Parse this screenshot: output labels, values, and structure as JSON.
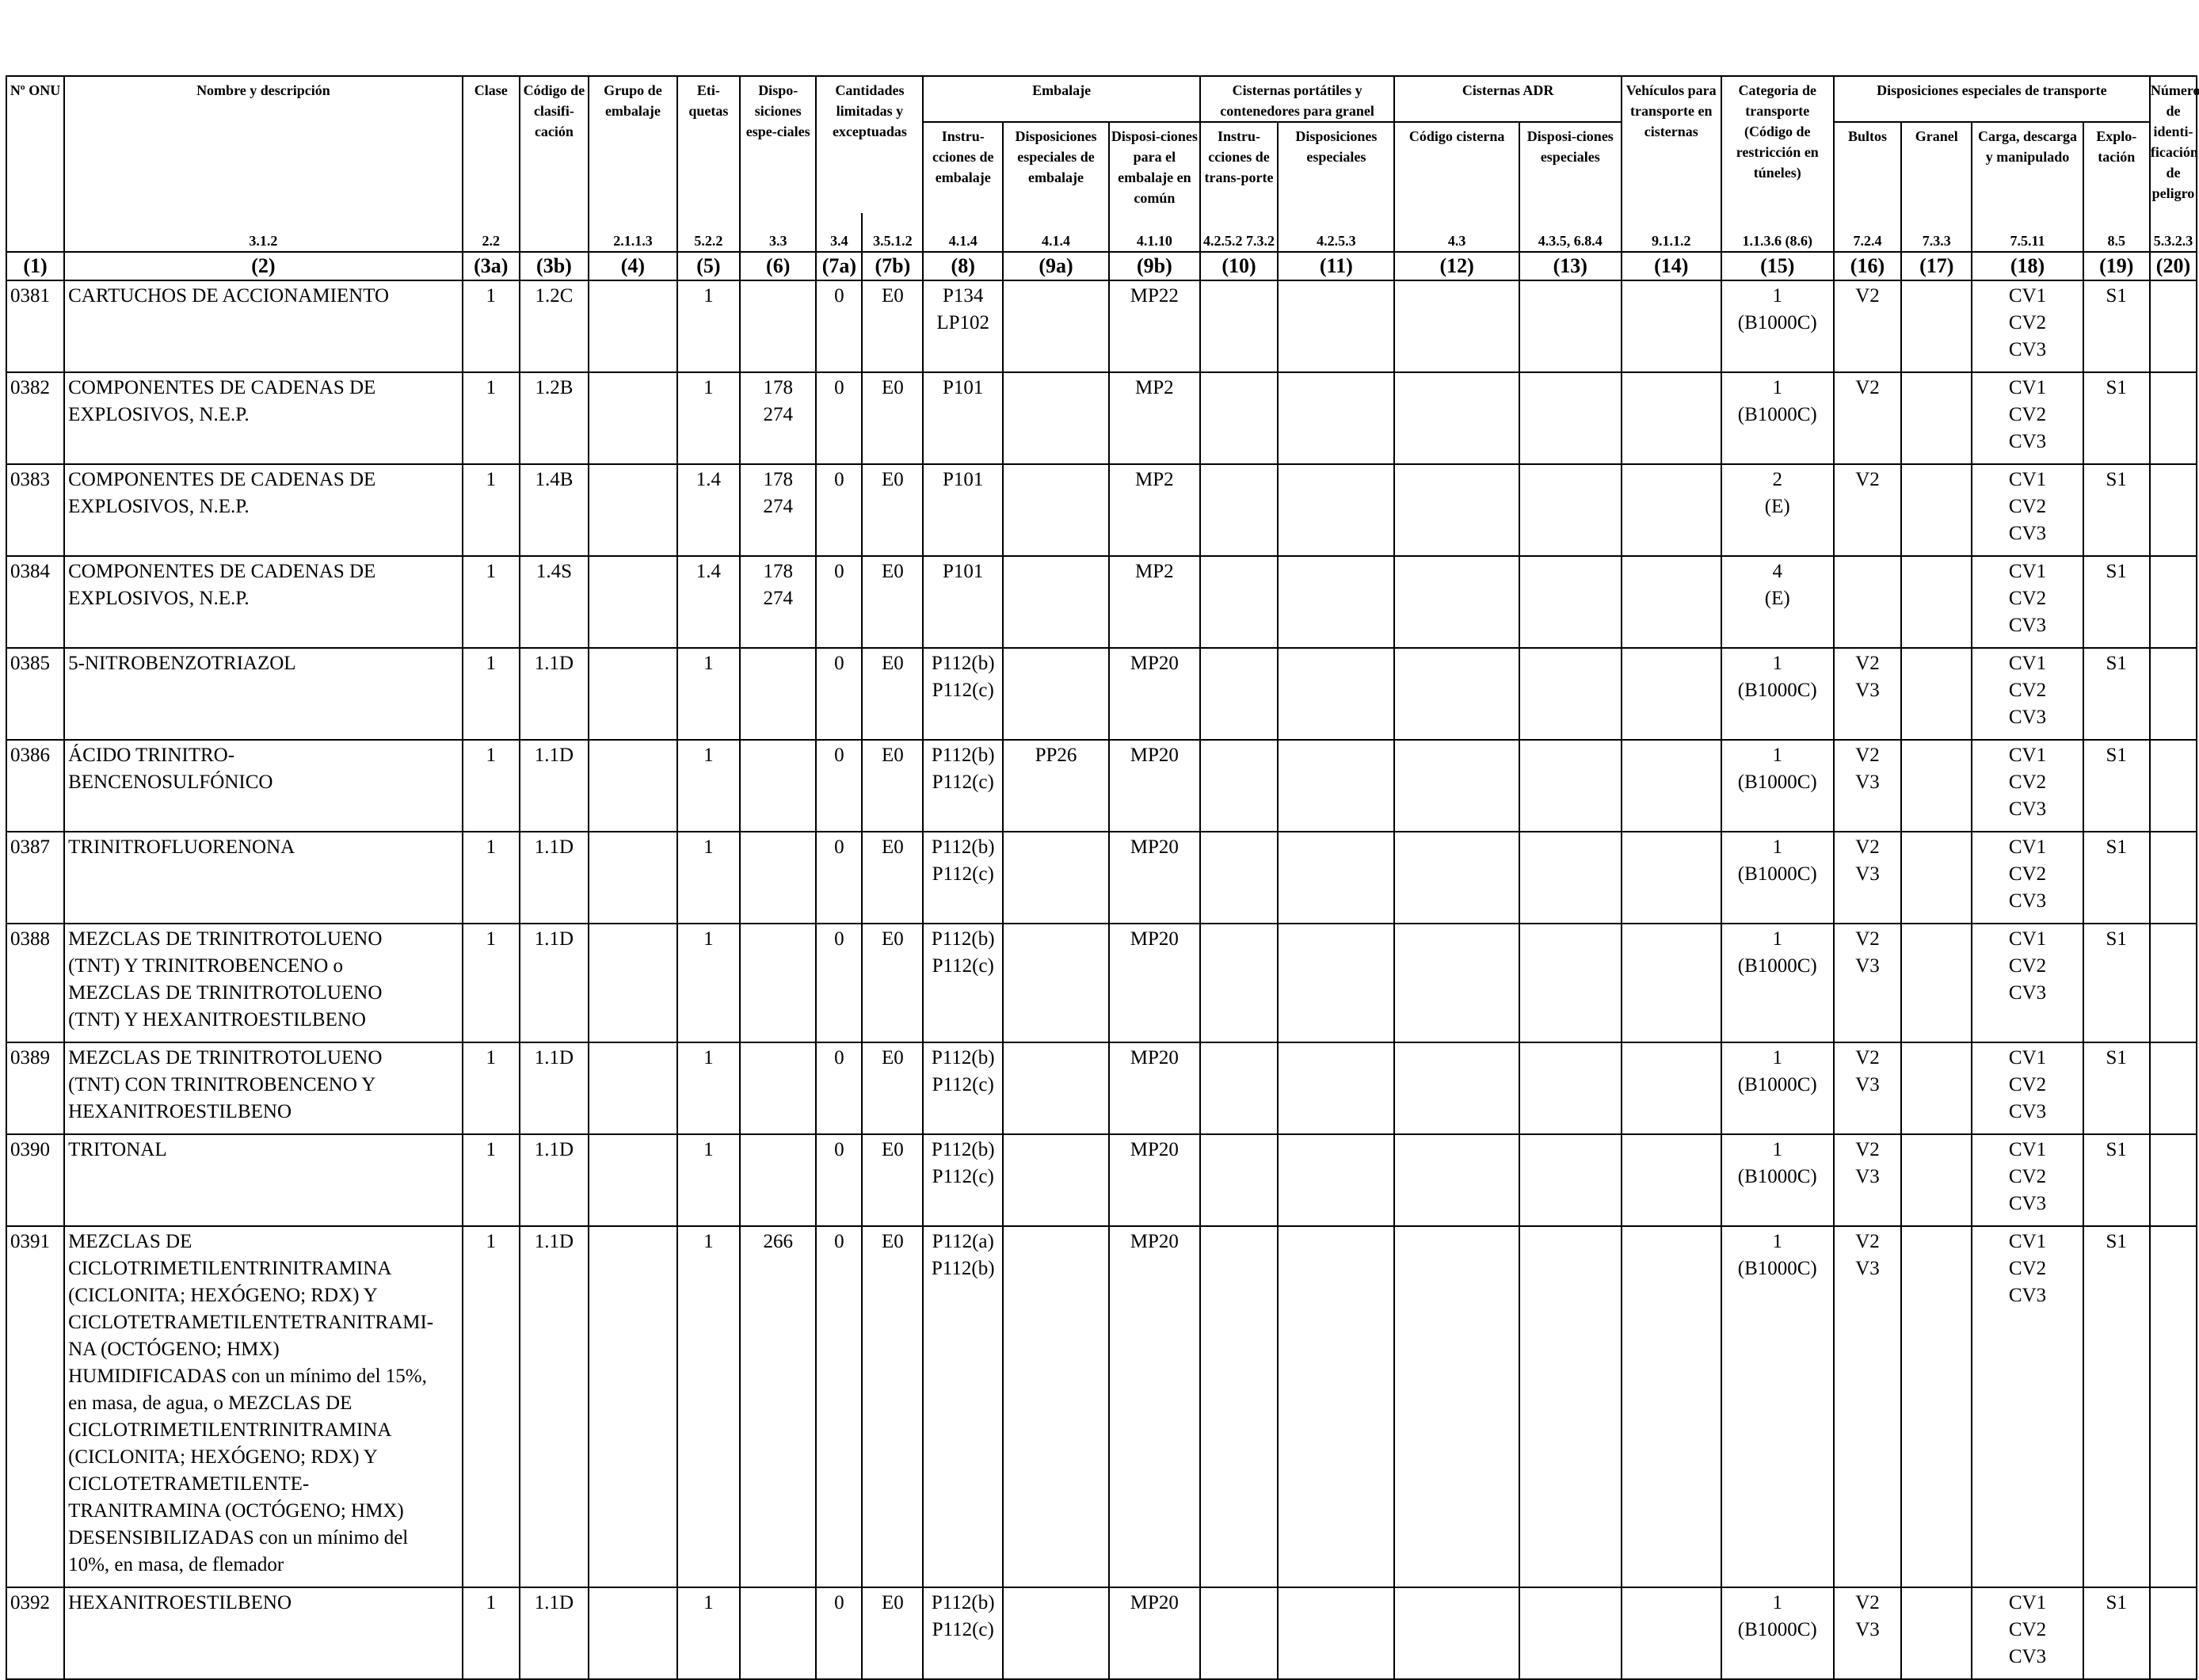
{
  "headers": {
    "onu": "Nº ONU",
    "name": "Nombre y descripción",
    "clase": "Clase",
    "codigo": "Código de clasifi-cación",
    "grupo": "Grupo de embalaje",
    "etiquetas": "Eti-quetas",
    "disp_esp": "Dispo-siciones espe-ciales",
    "cantidades": "Cantidades limitadas y exceptuadas",
    "embalaje": "Embalaje",
    "emb_instr": "Instru-cciones de embalaje",
    "emb_disp": "Disposiciones especiales de embalaje",
    "emb_comun": "Disposi-ciones para el embalaje en común",
    "cisternas_port": "Cisternas portátiles y contenedores para granel",
    "cp_instr": "Instru-cciones de trans-porte",
    "cp_disp": "Disposiciones especiales",
    "cisternas_adr": "Cisternas ADR",
    "adr_codigo": "Código cisterna",
    "adr_disp": "Disposi-ciones especiales",
    "vehiculos": "Vehículos para transporte en cisternas",
    "categoria": "Categoria de transporte (Código de restricción en túneles)",
    "disp_transporte": "Disposiciones especiales de transporte",
    "bultos": "Bultos",
    "granel": "Granel",
    "carga": "Carga, descarga y manipulado",
    "explotacion": "Explo-tación",
    "numero_id": "Número de identi-ficación de peligro"
  },
  "refs": [
    "",
    "3.1.2",
    "2.2",
    "",
    "2.1.1.3",
    "5.2.2",
    "3.3",
    "3.4",
    "3.5.1.2",
    "4.1.4",
    "4.1.4",
    "4.1.10",
    "4.2.5.2 7.3.2",
    "4.2.5.3",
    "4.3",
    "4.3.5, 6.8.4",
    "9.1.1.2",
    "1.1.3.6 (8.6)",
    "7.2.4",
    "7.3.3",
    "7.5.11",
    "8.5",
    "5.3.2.3"
  ],
  "col_numbers": [
    "(1)",
    "(2)",
    "(3a)",
    "(3b)",
    "(4)",
    "(5)",
    "(6)",
    "(7a)",
    "(7b)",
    "(8)",
    "(9a)",
    "(9b)",
    "(10)",
    "(11)",
    "(12)",
    "(13)",
    "(14)",
    "(15)",
    "(16)",
    "(17)",
    "(18)",
    "(19)",
    "(20)"
  ],
  "rows": [
    {
      "onu": "0381",
      "name": [
        "CARTUCHOS DE ACCIONAMIENTO"
      ],
      "clase": "1",
      "codigo": "1.2C",
      "grupo": "",
      "etiquetas": "1",
      "disp": [],
      "q7a": "0",
      "q7b": "E0",
      "instr": [
        "P134",
        "LP102"
      ],
      "emb_disp": "",
      "emb_comun": "MP22",
      "cat": [
        "1",
        "(B1000C)"
      ],
      "bultos": [
        "V2"
      ],
      "granel": "",
      "carga": [
        "CV1",
        "CV2",
        "CV3"
      ],
      "explot": "S1"
    },
    {
      "onu": "0382",
      "name": [
        "COMPONENTES DE CADENAS DE",
        "EXPLOSIVOS, N.E.P."
      ],
      "clase": "1",
      "codigo": "1.2B",
      "grupo": "",
      "etiquetas": "1",
      "disp": [
        "178",
        "274"
      ],
      "q7a": "0",
      "q7b": "E0",
      "instr": [
        "P101"
      ],
      "emb_disp": "",
      "emb_comun": "MP2",
      "cat": [
        "1",
        "(B1000C)"
      ],
      "bultos": [
        "V2"
      ],
      "granel": "",
      "carga": [
        "CV1",
        "CV2",
        "CV3"
      ],
      "explot": "S1"
    },
    {
      "onu": "0383",
      "name": [
        "COMPONENTES DE CADENAS DE",
        "EXPLOSIVOS, N.E.P."
      ],
      "clase": "1",
      "codigo": "1.4B",
      "grupo": "",
      "etiquetas": "1.4",
      "disp": [
        "178",
        "274"
      ],
      "q7a": "0",
      "q7b": "E0",
      "instr": [
        "P101"
      ],
      "emb_disp": "",
      "emb_comun": "MP2",
      "cat": [
        "2",
        "(E)"
      ],
      "bultos": [
        "V2"
      ],
      "granel": "",
      "carga": [
        "CV1",
        "CV2",
        "CV3"
      ],
      "explot": "S1"
    },
    {
      "onu": "0384",
      "name": [
        "COMPONENTES DE CADENAS DE",
        "EXPLOSIVOS, N.E.P."
      ],
      "clase": "1",
      "codigo": "1.4S",
      "grupo": "",
      "etiquetas": "1.4",
      "disp": [
        "178",
        "274"
      ],
      "q7a": "0",
      "q7b": "E0",
      "instr": [
        "P101"
      ],
      "emb_disp": "",
      "emb_comun": "MP2",
      "cat": [
        "4",
        "(E)"
      ],
      "bultos": [],
      "granel": "",
      "carga": [
        "CV1",
        "CV2",
        "CV3"
      ],
      "explot": "S1"
    },
    {
      "onu": "0385",
      "name": [
        "5-NITROBENZOTRIAZOL"
      ],
      "clase": "1",
      "codigo": "1.1D",
      "grupo": "",
      "etiquetas": "1",
      "disp": [],
      "q7a": "0",
      "q7b": "E0",
      "instr": [
        "P112(b)",
        "P112(c)"
      ],
      "emb_disp": "",
      "emb_comun": "MP20",
      "cat": [
        "1",
        "(B1000C)"
      ],
      "bultos": [
        "V2",
        "V3"
      ],
      "granel": "",
      "carga": [
        "CV1",
        "CV2",
        "CV3"
      ],
      "explot": "S1"
    },
    {
      "onu": "0386",
      "name": [
        "ÁCIDO TRINITRO-",
        "BENCENOSULFÓNICO"
      ],
      "clase": "1",
      "codigo": "1.1D",
      "grupo": "",
      "etiquetas": "1",
      "disp": [],
      "q7a": "0",
      "q7b": "E0",
      "instr": [
        "P112(b)",
        "P112(c)"
      ],
      "emb_disp": "PP26",
      "emb_comun": "MP20",
      "cat": [
        "1",
        "(B1000C)"
      ],
      "bultos": [
        "V2",
        "V3"
      ],
      "granel": "",
      "carga": [
        "CV1",
        "CV2",
        "CV3"
      ],
      "explot": "S1"
    },
    {
      "onu": "0387",
      "name": [
        "TRINITROFLUORENONA"
      ],
      "clase": "1",
      "codigo": "1.1D",
      "grupo": "",
      "etiquetas": "1",
      "disp": [],
      "q7a": "0",
      "q7b": "E0",
      "instr": [
        "P112(b)",
        "P112(c)"
      ],
      "emb_disp": "",
      "emb_comun": "MP20",
      "cat": [
        "1",
        "(B1000C)"
      ],
      "bultos": [
        "V2",
        "V3"
      ],
      "granel": "",
      "carga": [
        "CV1",
        "CV2",
        "CV3"
      ],
      "explot": "S1"
    },
    {
      "onu": "0388",
      "name": [
        "MEZCLAS DE TRINITROTOLUENO",
        "(TNT) Y TRINITROBENCENO o",
        "MEZCLAS DE TRINITROTOLUENO",
        "(TNT) Y HEXANITROESTILBENO"
      ],
      "clase": "1",
      "codigo": "1.1D",
      "grupo": "",
      "etiquetas": "1",
      "disp": [],
      "q7a": "0",
      "q7b": "E0",
      "instr": [
        "P112(b)",
        "P112(c)"
      ],
      "emb_disp": "",
      "emb_comun": "MP20",
      "cat": [
        "1",
        "(B1000C)"
      ],
      "bultos": [
        "V2",
        "V3"
      ],
      "granel": "",
      "carga": [
        "CV1",
        "CV2",
        "CV3"
      ],
      "explot": "S1"
    },
    {
      "onu": "0389",
      "name": [
        "MEZCLAS DE TRINITROTOLUENO",
        "(TNT) CON TRINITROBENCENO Y",
        "HEXANITROESTILBENO"
      ],
      "clase": "1",
      "codigo": "1.1D",
      "grupo": "",
      "etiquetas": "1",
      "disp": [],
      "q7a": "0",
      "q7b": "E0",
      "instr": [
        "P112(b)",
        "P112(c)"
      ],
      "emb_disp": "",
      "emb_comun": "MP20",
      "cat": [
        "1",
        "(B1000C)"
      ],
      "bultos": [
        "V2",
        "V3"
      ],
      "granel": "",
      "carga": [
        "CV1",
        "CV2",
        "CV3"
      ],
      "explot": "S1"
    },
    {
      "onu": "0390",
      "name": [
        "TRITONAL"
      ],
      "clase": "1",
      "codigo": "1.1D",
      "grupo": "",
      "etiquetas": "1",
      "disp": [],
      "q7a": "0",
      "q7b": "E0",
      "instr": [
        "P112(b)",
        "P112(c)"
      ],
      "emb_disp": "",
      "emb_comun": "MP20",
      "cat": [
        "1",
        "(B1000C)"
      ],
      "bultos": [
        "V2",
        "V3"
      ],
      "granel": "",
      "carga": [
        "CV1",
        "CV2",
        "CV3"
      ],
      "explot": "S1"
    },
    {
      "onu": "0391",
      "name": [
        "MEZCLAS DE",
        "CICLOTRIMETILENTRINITRAMINA",
        "(CICLONITA; HEXÓGENO; RDX) Y",
        "CICLOTETRAMETILENTETRANITRAMI-",
        "NA (OCTÓGENO; HMX)",
        "HUMIDIFICADAS con un mínimo del 15%,",
        "en masa, de agua, o MEZCLAS DE",
        "CICLOTRIMETILENTRINITRAMINA",
        "(CICLONITA; HEXÓGENO; RDX) Y",
        "CICLOTETRAMETILENTE-",
        "TRANITRAMINA (OCTÓGENO; HMX)",
        "DESENSIBILIZADAS con un mínimo del",
        "10%, en masa, de flemador"
      ],
      "clase": "1",
      "codigo": "1.1D",
      "grupo": "",
      "etiquetas": "1",
      "disp": [
        "266"
      ],
      "q7a": "0",
      "q7b": "E0",
      "instr": [
        "P112(a)",
        "P112(b)"
      ],
      "emb_disp": "",
      "emb_comun": "MP20",
      "cat": [
        "1",
        "(B1000C)"
      ],
      "bultos": [
        "V2",
        "V3"
      ],
      "granel": "",
      "carga": [
        "CV1",
        "CV2",
        "CV3"
      ],
      "explot": "S1"
    },
    {
      "onu": "0392",
      "name": [
        "HEXANITROESTILBENO"
      ],
      "clase": "1",
      "codigo": "1.1D",
      "grupo": "",
      "etiquetas": "1",
      "disp": [],
      "q7a": "0",
      "q7b": "E0",
      "instr": [
        "P112(b)",
        "P112(c)"
      ],
      "emb_disp": "",
      "emb_comun": "MP20",
      "cat": [
        "1",
        "(B1000C)"
      ],
      "bultos": [
        "V2",
        "V3"
      ],
      "granel": "",
      "carga": [
        "CV1",
        "CV2",
        "CV3"
      ],
      "explot": "S1"
    }
  ]
}
